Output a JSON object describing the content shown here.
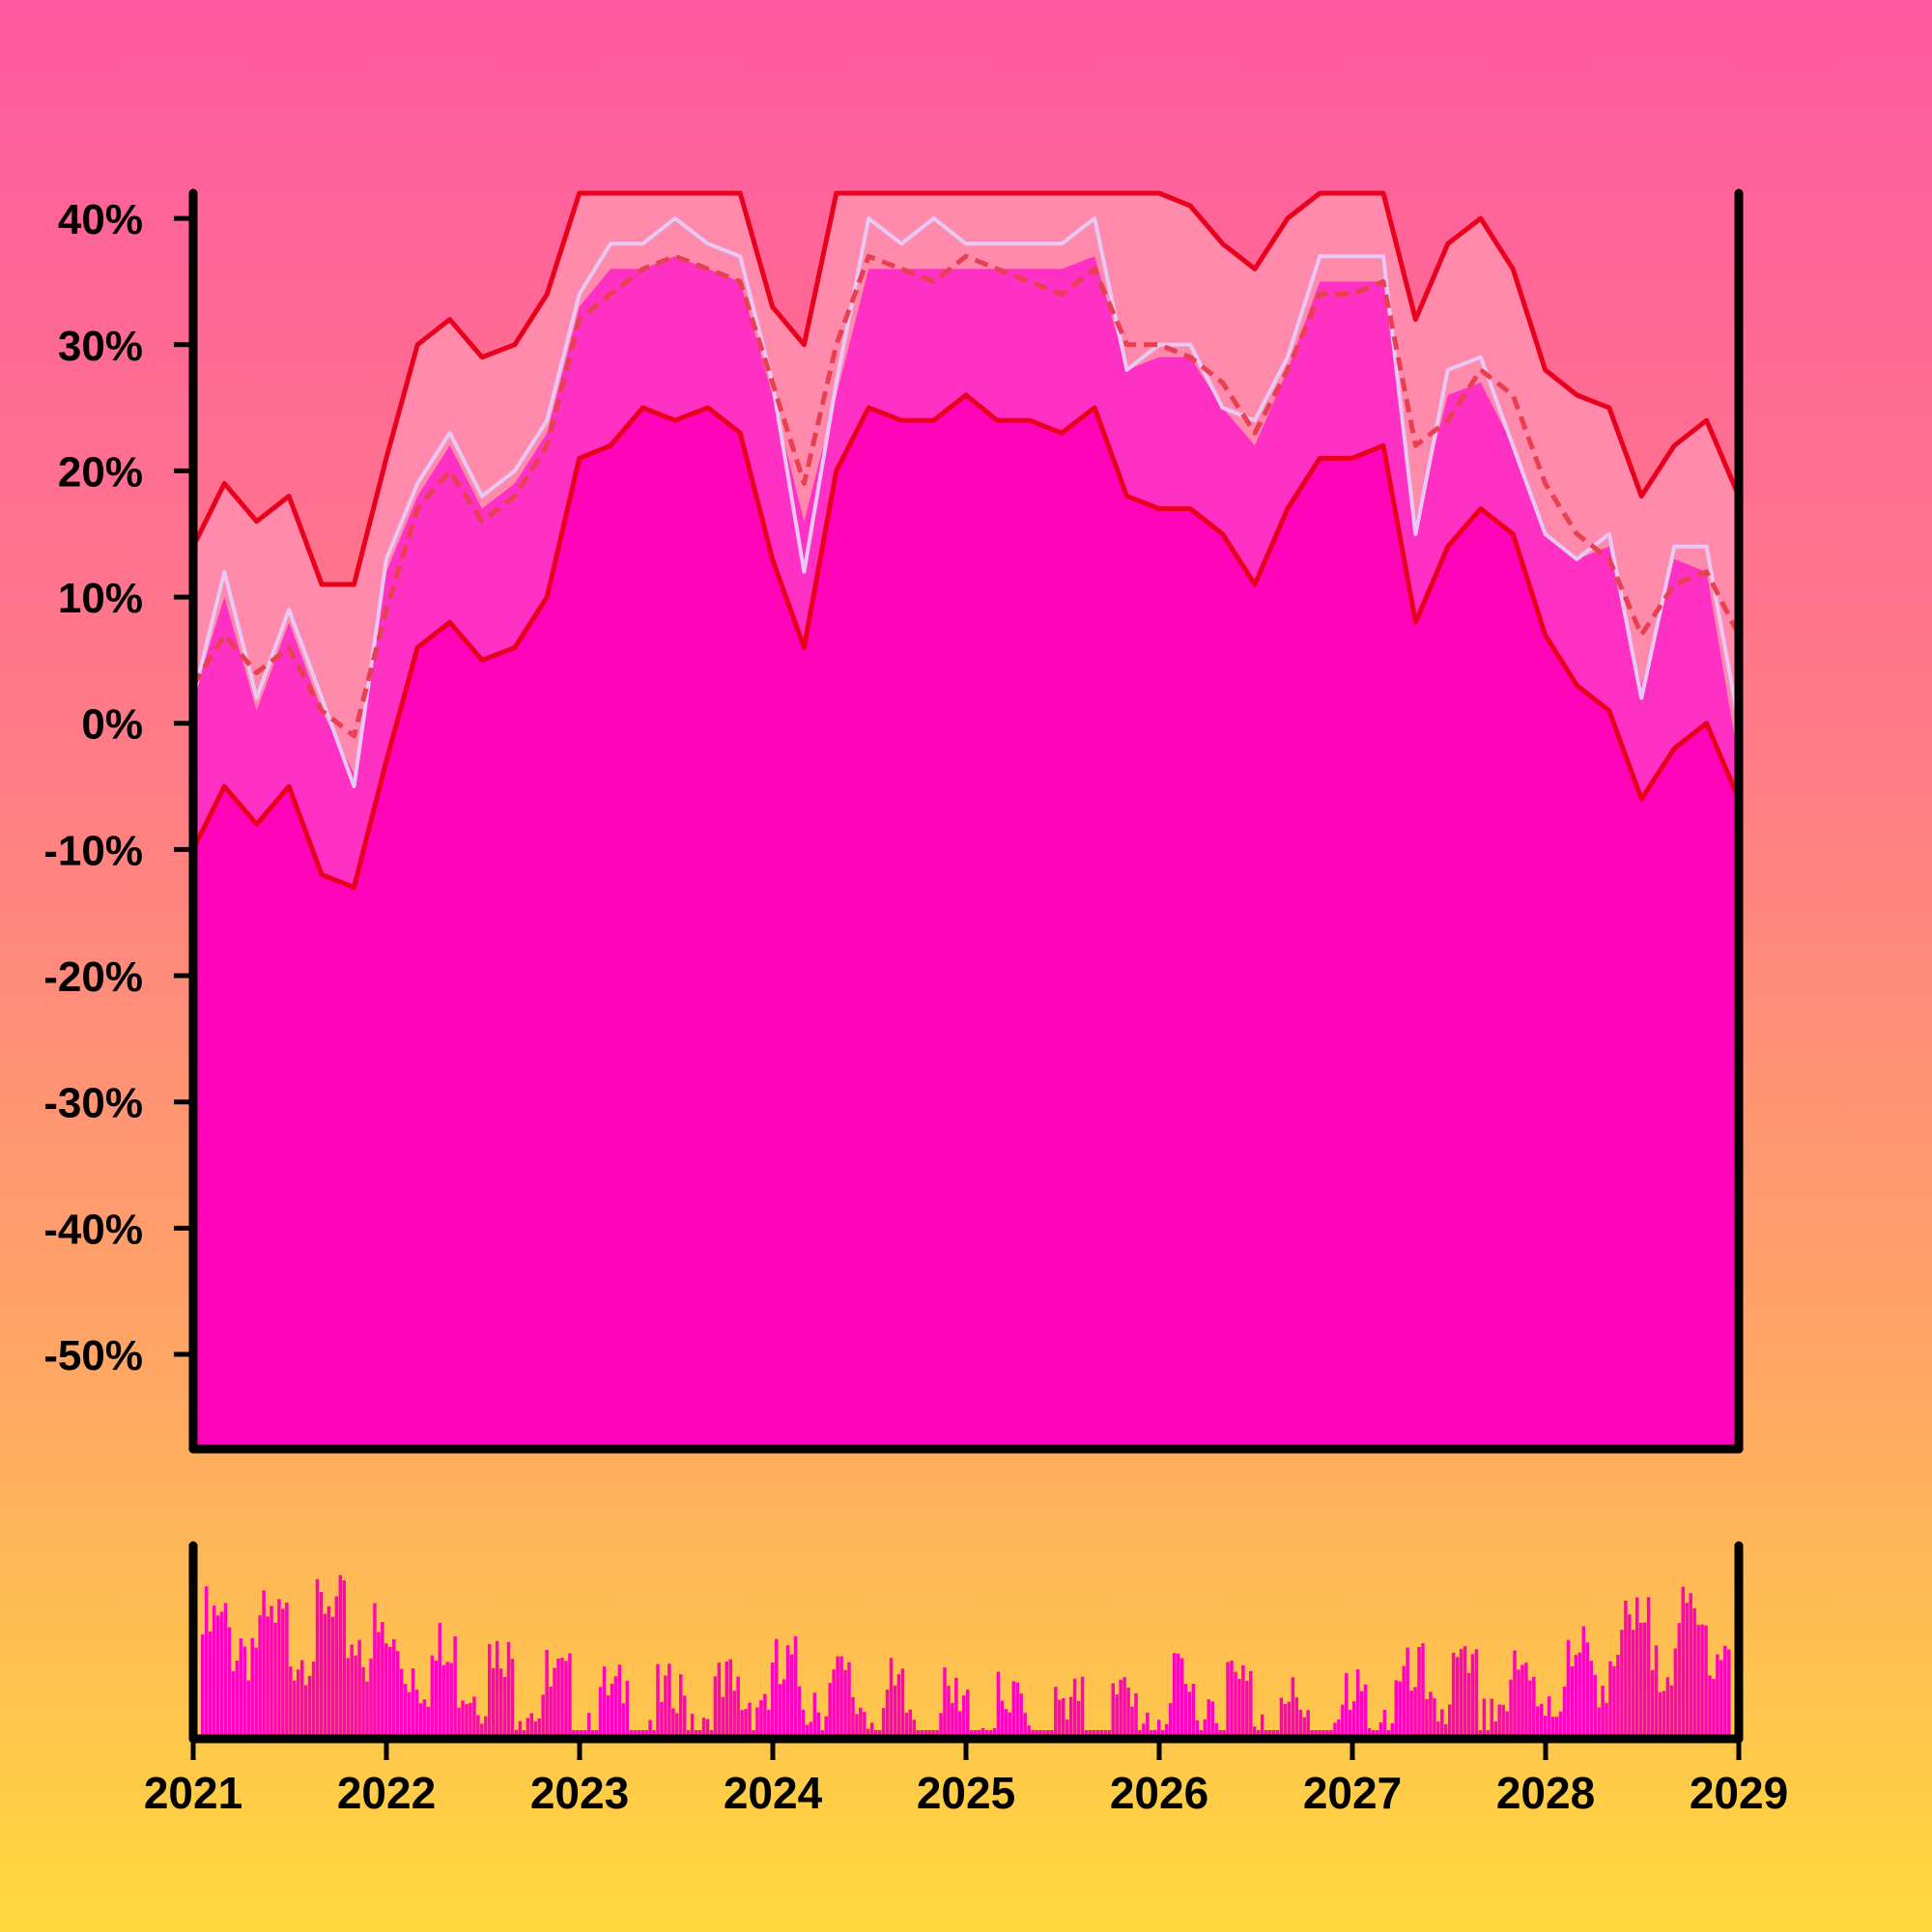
{
  "colors": {
    "area_main": "#ff05b9",
    "area_mid": "#ff30c4",
    "band_fill": "#ff8aac",
    "raw_line": "#e8c8f4",
    "bound_line": "#e8001c",
    "ma_line": "#e84050",
    "axis": "#000000",
    "volume_bars": "#ff05b9"
  },
  "chart_data": [
    {
      "type": "area",
      "title": "",
      "xlabel": "",
      "ylabel": "",
      "x_ticks": [
        "2021",
        "2022",
        "2023",
        "2024",
        "2025",
        "2026",
        "2027",
        "2028",
        "2029"
      ],
      "y_ticks": [
        "40%",
        "30%",
        "20%",
        "10%",
        "0%",
        "-10%",
        "-20%",
        "-30%",
        "-40%",
        "-50%"
      ],
      "xlim": [
        "2021-01-01",
        "2029-01-01"
      ],
      "ylim": [
        -57.5,
        42
      ],
      "grid": false,
      "legend": "none",
      "x": [
        "2021-01-01",
        "2021-03-01",
        "2021-05-01",
        "2021-07-01",
        "2021-09-01",
        "2021-11-01",
        "2022-01-01",
        "2022-03-01",
        "2022-05-01",
        "2022-07-01",
        "2022-09-01",
        "2022-11-01",
        "2023-01-01",
        "2023-03-01",
        "2023-05-01",
        "2023-07-01",
        "2023-09-01",
        "2023-11-01",
        "2024-01-01",
        "2024-03-01",
        "2024-05-01",
        "2024-07-01",
        "2024-09-01",
        "2024-11-01",
        "2025-01-01",
        "2025-03-01",
        "2025-05-01",
        "2025-07-01",
        "2025-09-01",
        "2025-11-01",
        "2026-01-01",
        "2026-03-01",
        "2026-05-01",
        "2026-07-01",
        "2026-09-01",
        "2026-11-01",
        "2027-01-01",
        "2027-03-01",
        "2027-05-01",
        "2027-07-01",
        "2027-09-01",
        "2027-11-01",
        "2028-01-01",
        "2028-03-01",
        "2028-05-01",
        "2028-07-01",
        "2028-09-01",
        "2028-11-01",
        "2029-01-01"
      ],
      "series": [
        {
          "role": "upper-band",
          "values": [
            14,
            19,
            16,
            18,
            11,
            11,
            21,
            30,
            32,
            29,
            30,
            34,
            42,
            42,
            42,
            42,
            42,
            42,
            33,
            30,
            42,
            42,
            42,
            42,
            42,
            42,
            42,
            42,
            42,
            42,
            42,
            41,
            38,
            36,
            40,
            42,
            42,
            42,
            32,
            38,
            40,
            36,
            28,
            26,
            25,
            18,
            22,
            24,
            18
          ]
        },
        {
          "role": "moving-average",
          "values": [
            3,
            7,
            4,
            6,
            1,
            -1,
            9,
            17,
            20,
            16,
            18,
            22,
            32,
            34,
            36,
            37,
            36,
            35,
            27,
            19,
            30,
            37,
            36,
            35,
            37,
            36,
            35,
            34,
            36,
            30,
            30,
            29,
            27,
            23,
            28,
            34,
            34,
            35,
            22,
            24,
            28,
            26,
            19,
            15,
            13,
            7,
            11,
            12,
            7
          ]
        },
        {
          "role": "raw",
          "values": [
            2,
            12,
            2,
            9,
            2,
            -5,
            13,
            19,
            23,
            18,
            20,
            24,
            34,
            38,
            38,
            40,
            38,
            37,
            27,
            12,
            27,
            40,
            38,
            40,
            38,
            38,
            38,
            38,
            40,
            28,
            30,
            30,
            25,
            24,
            29,
            37,
            37,
            37,
            15,
            28,
            29,
            22,
            15,
            13,
            15,
            2,
            14,
            14,
            0
          ]
        },
        {
          "role": "mid-area",
          "values": [
            2,
            10,
            1,
            8,
            1,
            -4,
            12,
            18,
            22,
            17,
            19,
            23,
            33,
            36,
            36,
            37,
            36,
            35,
            26,
            16,
            26,
            36,
            36,
            36,
            36,
            36,
            36,
            36,
            37,
            28,
            29,
            29,
            25,
            22,
            28,
            35,
            35,
            35,
            16,
            26,
            27,
            22,
            15,
            13,
            14,
            3,
            13,
            12,
            -3
          ]
        },
        {
          "role": "lower-band",
          "values": [
            -10,
            -5,
            -8,
            -5,
            -12,
            -13,
            -3,
            6,
            8,
            5,
            6,
            10,
            21,
            22,
            25,
            24,
            25,
            23,
            13,
            6,
            20,
            25,
            24,
            24,
            26,
            24,
            24,
            23,
            25,
            18,
            17,
            17,
            15,
            11,
            17,
            21,
            21,
            22,
            8,
            14,
            17,
            15,
            7,
            3,
            1,
            -6,
            -2,
            0,
            -6
          ]
        }
      ]
    },
    {
      "type": "bar",
      "title": "",
      "grid": false,
      "legend": "none",
      "x_ticks": [
        "2021",
        "2022",
        "2023",
        "2024",
        "2025",
        "2026",
        "2027",
        "2028",
        "2029"
      ],
      "x": [
        "2021-02",
        "2021-06",
        "2021-10",
        "2022-02",
        "2022-06",
        "2022-10",
        "2023-02",
        "2023-06",
        "2023-10",
        "2024-02",
        "2024-06",
        "2024-10",
        "2025-02",
        "2025-06",
        "2025-10",
        "2026-02",
        "2026-06",
        "2026-10",
        "2027-02",
        "2027-06",
        "2027-10",
        "2028-02",
        "2028-06",
        "2028-10"
      ],
      "values": [
        0.75,
        0.72,
        0.8,
        0.6,
        0.55,
        0.45,
        0.3,
        0.28,
        0.35,
        0.48,
        0.38,
        0.28,
        0.25,
        0.22,
        0.28,
        0.35,
        0.42,
        0.2,
        0.3,
        0.45,
        0.38,
        0.48,
        0.68,
        0.74
      ],
      "ylim": [
        0,
        1
      ]
    }
  ]
}
